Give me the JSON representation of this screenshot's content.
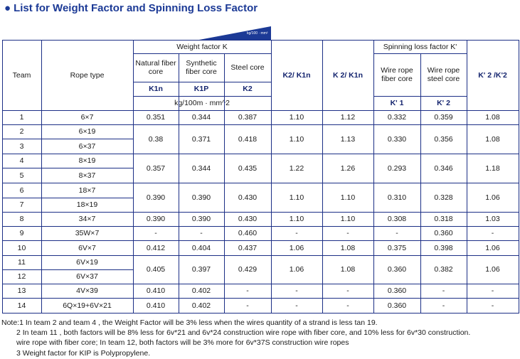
{
  "title": "List for Weight Factor and Spinning Loss Factor",
  "accent_color": "#1c3a96",
  "header": {
    "team": "Team",
    "rope_type": "Rope type",
    "weight_factor": "Weight factor K",
    "unit_badge": "kg/100 · mm²",
    "natural": "Natural fiber core",
    "synthetic": "Synthetic fiber core",
    "steel": "Steel core",
    "k1n": "K1n",
    "k1p": "K1P",
    "k2": "K2",
    "units": "kg/100m · mm^2",
    "k2_k1n": "K2/ K1n",
    "k2_k1n_b": "K 2/ K1n",
    "spinning": "Spinning loss factor K'",
    "wire_fiber": "Wire rope fiber core",
    "wire_steel": "Wire rope steel core",
    "kp1": "K' 1",
    "kp2": "K' 2",
    "kp_ratio": "K' 2 /K'2"
  },
  "rows": [
    {
      "team": "1",
      "rope": "6×7"
    },
    {
      "team": "2",
      "rope": "6×19"
    },
    {
      "team": "3",
      "rope": "6×37"
    },
    {
      "team": "4",
      "rope": "8×19"
    },
    {
      "team": "5",
      "rope": "8×37"
    },
    {
      "team": "6",
      "rope": "18×7"
    },
    {
      "team": "7",
      "rope": "18×19"
    },
    {
      "team": "8",
      "rope": "34×7"
    },
    {
      "team": "9",
      "rope": "35W×7"
    },
    {
      "team": "10",
      "rope": "6V×7"
    },
    {
      "team": "11",
      "rope": "6V×19"
    },
    {
      "team": "12",
      "rope": "6V×37"
    },
    {
      "team": "13",
      "rope": "4V×39"
    },
    {
      "team": "14",
      "rope": "6Q×19+6V×21"
    }
  ],
  "groups": [
    {
      "k1n": "0.351",
      "k1p": "0.344",
      "k2": "0.387",
      "r1": "1.10",
      "r2": "1.12",
      "kp1": "0.332",
      "kp2": "0.359",
      "kr": "1.08"
    },
    {
      "k1n": "0.38",
      "k1p": "0.371",
      "k2": "0.418",
      "r1": "1.10",
      "r2": "1.13",
      "kp1": "0.330",
      "kp2": "0.356",
      "kr": "1.08"
    },
    {
      "k1n": "0.357",
      "k1p": "0.344",
      "k2": "0.435",
      "r1": "1.22",
      "r2": "1.26",
      "kp1": "0.293",
      "kp2": "0.346",
      "kr": "1.18"
    },
    {
      "k1n": "0.390",
      "k1p": "0.390",
      "k2": "0.430",
      "r1": "1.10",
      "r2": "1.10",
      "kp1": "0.310",
      "kp2": "0.328",
      "kr": "1.06"
    },
    {
      "k1n": "0.390",
      "k1p": "0.390",
      "k2": "0.430",
      "r1": "1.10",
      "r2": "1.10",
      "kp1": "0.308",
      "kp2": "0.318",
      "kr": "1.03"
    },
    {
      "k1n": "-",
      "k1p": "-",
      "k2": "0.460",
      "r1": "-",
      "r2": "-",
      "kp1": "-",
      "kp2": "0.360",
      "kr": "-"
    },
    {
      "k1n": "0.412",
      "k1p": "0.404",
      "k2": "0.437",
      "r1": "1.06",
      "r2": "1.08",
      "kp1": "0.375",
      "kp2": "0.398",
      "kr": "1.06"
    },
    {
      "k1n": "0.405",
      "k1p": "0.397",
      "k2": "0.429",
      "r1": "1.06",
      "r2": "1.08",
      "kp1": "0.360",
      "kp2": "0.382",
      "kr": "1.06"
    },
    {
      "k1n": "0.410",
      "k1p": "0.402",
      "k2": "-",
      "r1": "-",
      "r2": "-",
      "kp1": "0.360",
      "kp2": "-",
      "kr": "-"
    },
    {
      "k1n": "0.410",
      "k1p": "0.402",
      "k2": "-",
      "r1": "-",
      "r2": "-",
      "kp1": "0.360",
      "kp2": "-",
      "kr": "-"
    }
  ],
  "notes": [
    "Note:1 In team 2 and team 4 , the Weight  Factor will be 3% less when the wires quantity of  a strand is less tan 19.",
    "2 In team 11 , both factors will be 8% less for 6v*21 and 6v*24 construction wire rope with fiber core, and 10% less for 6v*30 construction.",
    "wire rope with fiber core; In team 12, both factors will be 3% more for 6v*37S construction wire ropes",
    "3 Weight factor for KIP is Polypropylene."
  ]
}
